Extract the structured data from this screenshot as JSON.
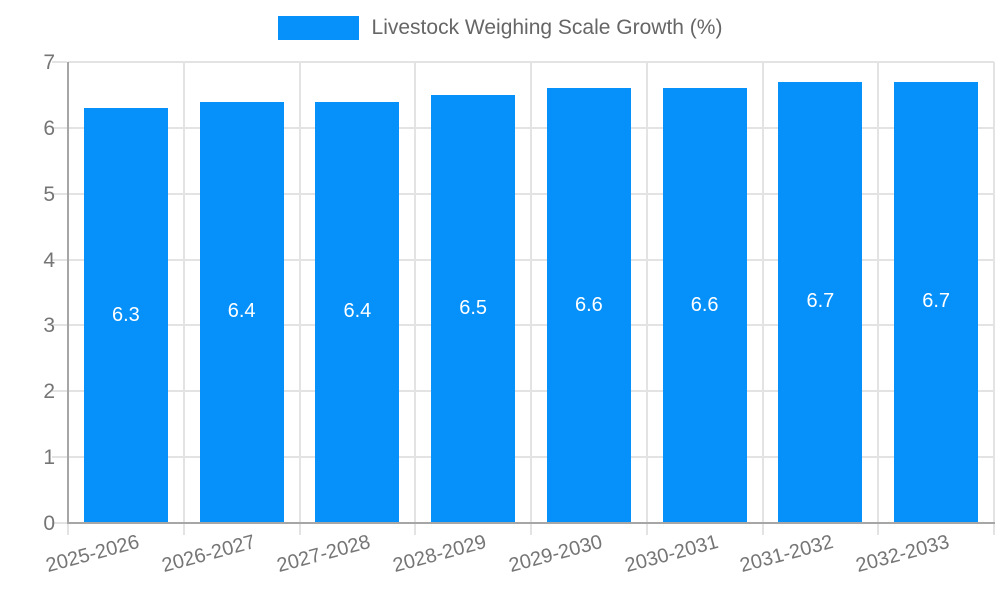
{
  "legend": {
    "label": "Livestock Weighing Scale Growth (%)"
  },
  "chart_data": {
    "type": "bar",
    "title": "Livestock Weighing Scale Growth (%)",
    "categories": [
      "2025-2026",
      "2026-2027",
      "2027-2028",
      "2028-2029",
      "2029-2030",
      "2030-2031",
      "2031-2032",
      "2032-2033"
    ],
    "values": [
      6.3,
      6.4,
      6.4,
      6.5,
      6.6,
      6.6,
      6.7,
      6.7
    ],
    "value_labels": [
      "6.3",
      "6.4",
      "6.4",
      "6.5",
      "6.6",
      "6.6",
      "6.7",
      "6.7"
    ],
    "xlabel": "",
    "ylabel": "",
    "ylim": [
      0,
      7
    ],
    "yticks": [
      0,
      1,
      2,
      3,
      4,
      5,
      6,
      7
    ],
    "grid": true,
    "legend_position": "top",
    "colors": {
      "bar": "#0590fa",
      "grid": "#e3e3e3",
      "axis": "#a6a6a6",
      "tick_text": "#757575",
      "legend_text": "#666666",
      "value_text": "#ffffff"
    }
  }
}
